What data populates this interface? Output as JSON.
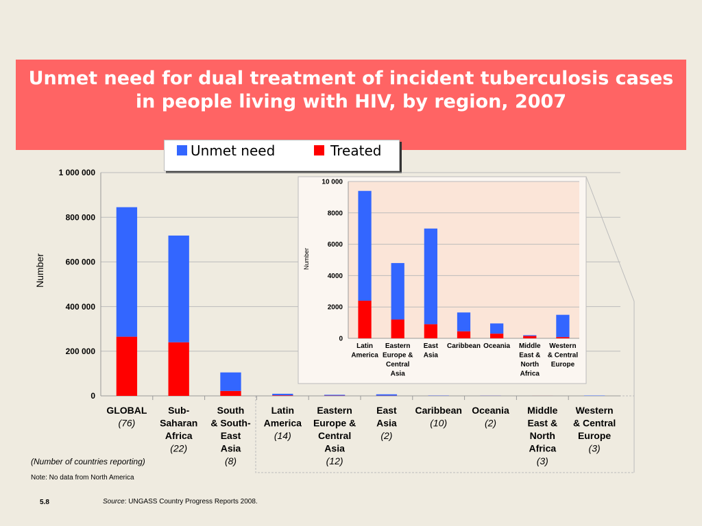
{
  "slide": {
    "title_line1": "Unmet need for dual treatment of incident tuberculosis cases",
    "title_line2": "in people living with HIV, by region, 2007",
    "countries_note": "(Number of countries reporting)",
    "note": "Note: No data from North America",
    "source_prefix": "Source",
    "source_text": ": UNGASS Country Progress Reports 2008.",
    "page_number": "5.8"
  },
  "legend": [
    {
      "label": "Unmet need",
      "color": "#3366ff"
    },
    {
      "label": "Treated",
      "color": "#ff0000"
    }
  ],
  "chart_data": [
    {
      "type": "bar",
      "stacked": true,
      "ylabel": "Number",
      "ylim": [
        0,
        1000000
      ],
      "y_ticks": [
        {
          "value": 0,
          "label": "0"
        },
        {
          "value": 200000,
          "label": "200 000"
        },
        {
          "value": 400000,
          "label": "400 000"
        },
        {
          "value": 600000,
          "label": "600 000"
        },
        {
          "value": 800000,
          "label": "800 000"
        },
        {
          "value": 1000000,
          "label": "1 000 000"
        }
      ],
      "categories": [
        {
          "lines": [
            "GLOBAL"
          ],
          "count": "(76)"
        },
        {
          "lines": [
            "Sub-",
            "Saharan",
            "Africa"
          ],
          "count": "(22)"
        },
        {
          "lines": [
            "South",
            "& South-",
            "East",
            "Asia"
          ],
          "count": "(8)"
        },
        {
          "lines": [
            "Latin",
            "America"
          ],
          "count": "(14)"
        },
        {
          "lines": [
            "Eastern",
            "Europe &",
            "Central",
            "Asia"
          ],
          "count": "(12)"
        },
        {
          "lines": [
            "East",
            "Asia"
          ],
          "count": "(2)"
        },
        {
          "lines": [
            "Caribbean"
          ],
          "count": "(10)"
        },
        {
          "lines": [
            "Oceania"
          ],
          "count": "(2)"
        },
        {
          "lines": [
            "Middle",
            "East &",
            "North",
            "Africa"
          ],
          "count": "(3)"
        },
        {
          "lines": [
            "Western",
            "& Central",
            "Europe"
          ],
          "count": "(3)"
        }
      ],
      "series": [
        {
          "name": "Treated",
          "color": "#ff0000",
          "values": [
            265000,
            240000,
            22000,
            2400,
            1200,
            900,
            450,
            300,
            150,
            80
          ]
        },
        {
          "name": "Unmet need",
          "color": "#3366ff",
          "values": [
            580000,
            478000,
            83000,
            7000,
            3600,
            6100,
            1200,
            650,
            50,
            1420
          ]
        }
      ],
      "grid": true
    },
    {
      "type": "bar",
      "stacked": true,
      "ylabel": "Number",
      "ylim": [
        0,
        10000
      ],
      "y_ticks": [
        {
          "value": 0,
          "label": "0"
        },
        {
          "value": 2000,
          "label": "2000"
        },
        {
          "value": 4000,
          "label": "4000"
        },
        {
          "value": 6000,
          "label": "6000"
        },
        {
          "value": 8000,
          "label": "8000"
        },
        {
          "value": 10000,
          "label": "10 000"
        }
      ],
      "categories": [
        {
          "lines": [
            "Latin",
            "America"
          ]
        },
        {
          "lines": [
            "Eastern",
            "Europe &",
            "Central",
            "Asia"
          ]
        },
        {
          "lines": [
            "East",
            "Asia"
          ]
        },
        {
          "lines": [
            "Caribbean"
          ]
        },
        {
          "lines": [
            "Oceania"
          ]
        },
        {
          "lines": [
            "Middle",
            "East &",
            "North",
            "Africa"
          ]
        },
        {
          "lines": [
            "Western",
            "& Central",
            "Europe"
          ]
        }
      ],
      "series": [
        {
          "name": "Treated",
          "color": "#ff0000",
          "values": [
            2400,
            1200,
            900,
            450,
            300,
            150,
            80
          ]
        },
        {
          "name": "Unmet need",
          "color": "#3366ff",
          "values": [
            7000,
            3600,
            6100,
            1200,
            650,
            50,
            1420
          ]
        }
      ],
      "grid": true
    }
  ]
}
